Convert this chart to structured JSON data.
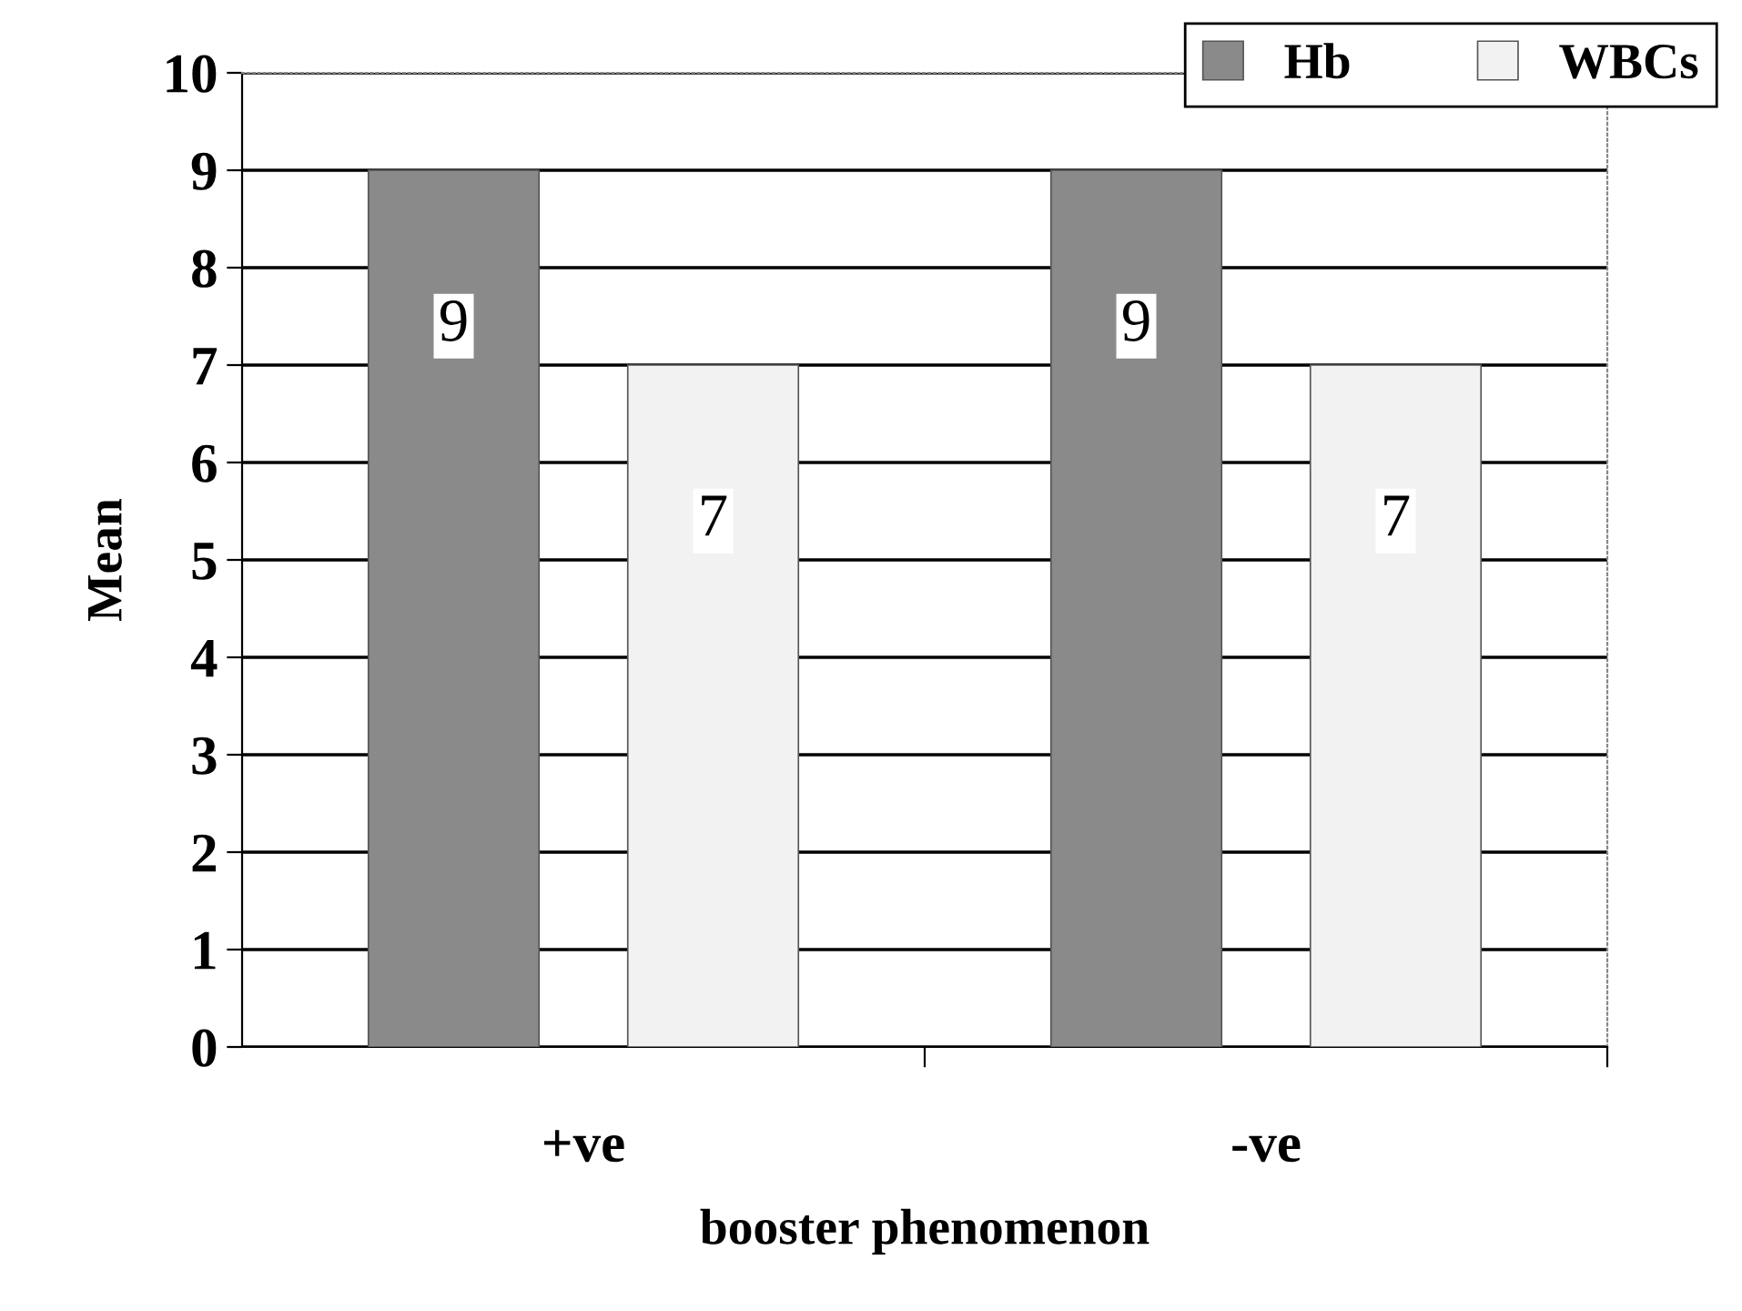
{
  "chart_data": {
    "type": "bar",
    "xlabel": "booster phenomenon",
    "ylabel": "Mean",
    "categories": [
      "+ve",
      "-ve"
    ],
    "series": [
      {
        "name": "Hb",
        "color": "#8a8a8a",
        "values": [
          9,
          9
        ]
      },
      {
        "name": "WBCs",
        "color": "#f2f2f2",
        "values": [
          7,
          7
        ]
      }
    ],
    "ylim": [
      0,
      10
    ],
    "yticks": [
      0,
      1,
      2,
      3,
      4,
      5,
      6,
      7,
      8,
      9,
      10
    ],
    "grid": "y",
    "legend": "top right",
    "data_labels": true
  }
}
